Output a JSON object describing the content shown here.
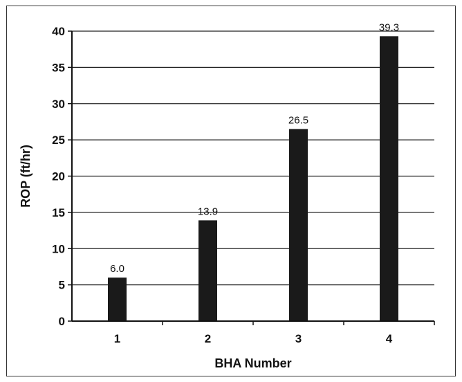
{
  "chart_data": {
    "type": "bar",
    "categories": [
      "1",
      "2",
      "3",
      "4"
    ],
    "values": [
      6.0,
      13.9,
      26.5,
      39.3
    ],
    "data_labels": [
      "6.0",
      "13.9",
      "26.5",
      "39.3"
    ],
    "xlabel": "BHA Number",
    "ylabel": "ROP (ft/hr)",
    "ylim": [
      0,
      40
    ],
    "yticks": [
      0,
      5,
      10,
      15,
      20,
      25,
      30,
      35,
      40
    ],
    "grid": true,
    "legend": "none",
    "bar_color": "#1a1a1a"
  }
}
